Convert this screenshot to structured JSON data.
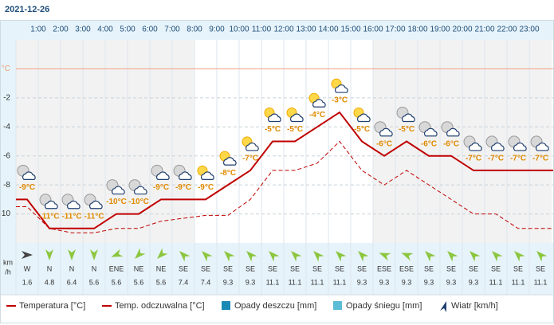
{
  "date": "2021-12-26",
  "chart_data": {
    "type": "line",
    "x_labels": [
      "1:00",
      "2:00",
      "3:00",
      "4:00",
      "5:00",
      "6:00",
      "7:00",
      "8:00",
      "9:00",
      "10:00",
      "11:00",
      "12:00",
      "13:00",
      "14:00",
      "15:00",
      "16:00",
      "17:00",
      "18:00",
      "19:00",
      "20:00",
      "21:00",
      "22:00",
      "23:00"
    ],
    "ylim": [
      -12,
      2
    ],
    "yticks": [
      {
        "value": 0,
        "label": "°C"
      },
      -2,
      -4,
      -6,
      -8,
      -10
    ],
    "grid": true,
    "series": [
      {
        "name": "Temperatura [°C]",
        "color": "#c00000",
        "values": [
          -9,
          -11,
          -11,
          -11,
          -10,
          -10,
          -9,
          -9,
          -9,
          -8,
          -7,
          -5,
          -5,
          -4,
          -3,
          -5,
          -6,
          -5,
          -6,
          -6,
          -7,
          -7,
          -7,
          -7
        ],
        "value_labels": [
          "-9°C",
          "-11°C",
          "-11°C",
          "-11°C",
          "-10°C",
          "-10°C",
          "-9°C",
          "-9°C",
          "-9°C",
          "-8°C",
          "-7°C",
          "-5°C",
          "-5°C",
          "-4°C",
          "-3°C",
          "-5°C",
          "-6°C",
          "-5°C",
          "-6°C",
          "-6°C",
          "-7°C",
          "-7°C",
          "-7°C",
          "-7°C"
        ]
      },
      {
        "name": "Temp. odczuwalna [°C]",
        "color": "#c00000",
        "dashed": true,
        "values": [
          -9.5,
          -11,
          -11.3,
          -11.3,
          -11,
          -11,
          -10.5,
          -10.3,
          -10.1,
          -10.1,
          -9,
          -7,
          -7,
          -6.5,
          -5,
          -7,
          -8,
          -7,
          -8,
          -9,
          -10,
          -10,
          -11,
          -11
        ]
      }
    ],
    "legend_extra": [
      {
        "name": "Opady deszczu [mm]",
        "color": "#1a8ab5"
      },
      {
        "name": "Opady śniegu [mm]",
        "color": "#5bbcd6"
      }
    ],
    "wind": {
      "name": "Wiatr [km/h]",
      "unit_lines": [
        "km",
        "/h"
      ],
      "directions": [
        "W",
        "N",
        "N",
        "N",
        "ENE",
        "NE",
        "NE",
        "SE",
        "SE",
        "SE",
        "SE",
        "SE",
        "SE",
        "SE",
        "SE",
        "SE",
        "ESE",
        "ESE",
        "SE",
        "SE",
        "SE",
        "SE",
        "SE",
        "SE"
      ],
      "speeds": [
        1.6,
        4.8,
        6.4,
        5.6,
        5.6,
        5.6,
        5.6,
        7.4,
        7.4,
        9.3,
        9.3,
        11.1,
        11.1,
        11.1,
        11.1,
        9.3,
        9.3,
        9.3,
        9.3,
        9.3,
        9.3,
        11.1,
        11.1,
        11.1
      ]
    }
  }
}
